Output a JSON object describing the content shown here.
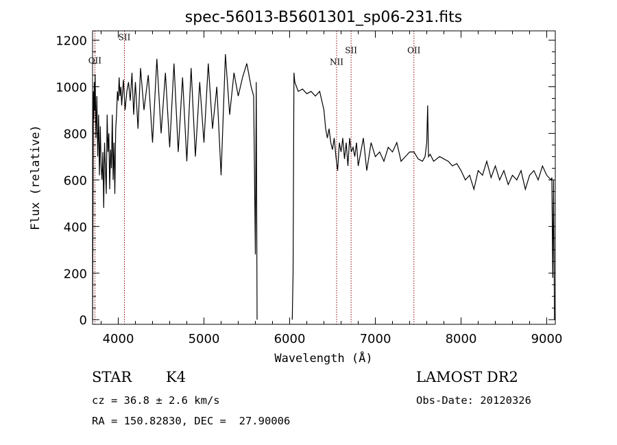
{
  "chart_data": {
    "type": "line",
    "title": "spec-56013-B5601301_sp06-231.fits",
    "xlabel": "Wavelength (Å)",
    "ylabel": "Flux (relative)",
    "xlim": [
      3700,
      9100
    ],
    "ylim": [
      -20,
      1240
    ],
    "x_ticks": [
      4000,
      5000,
      6000,
      7000,
      8000,
      9000
    ],
    "y_ticks": [
      0,
      200,
      400,
      600,
      800,
      1000,
      1200
    ],
    "grid": false,
    "legend": "none",
    "line_markers": [
      {
        "label": "OII",
        "x": 3727,
        "label_y": 1100
      },
      {
        "label": "SII",
        "x": 4072,
        "label_y": 1200
      },
      {
        "label": "NII",
        "x": 6548,
        "label_y": 1095
      },
      {
        "label": "SII",
        "x": 6717,
        "label_y": 1145
      },
      {
        "label": "OII",
        "x": 7450,
        "label_y": 1145
      }
    ],
    "series": [
      {
        "x": [
          3700,
          3705,
          3710,
          3715,
          3720,
          3725,
          3730,
          3740,
          3750,
          3760,
          3770,
          3780,
          3790,
          3800,
          3810,
          3820,
          3830,
          3840,
          3850,
          3860,
          3870,
          3880,
          3890,
          3900,
          3910,
          3920,
          3930,
          3940,
          3950,
          3960,
          3970,
          3980,
          3990,
          4000,
          4010,
          4020,
          4030,
          4040,
          4060,
          4080,
          4100,
          4120,
          4140,
          4160,
          4180,
          4200,
          4230,
          4260,
          4300,
          4350,
          4400,
          4450,
          4500,
          4550,
          4600,
          4650,
          4700,
          4750,
          4800,
          4850,
          4900,
          4950,
          5000,
          5050,
          5100,
          5150,
          5200,
          5250,
          5300,
          5350,
          5400,
          5450,
          5500,
          5550,
          5580,
          5600,
          5610,
          5620,
          null,
          6030,
          6040,
          6050,
          6060,
          6080,
          6100,
          6150,
          6200,
          6250,
          6300,
          6350,
          6400,
          6420,
          6440,
          6460,
          6480,
          6500,
          6520,
          6540,
          6560,
          6580,
          6600,
          6620,
          6640,
          6660,
          6680,
          6700,
          6720,
          6740,
          6760,
          6780,
          6800,
          6830,
          6860,
          6900,
          6950,
          7000,
          7050,
          7100,
          7150,
          7200,
          7250,
          7300,
          7350,
          7400,
          7450,
          7500,
          7550,
          7580,
          7600,
          7610,
          7620,
          7640,
          7680,
          7750,
          7800,
          7850,
          7900,
          7950,
          8000,
          8050,
          8100,
          8150,
          8200,
          8250,
          8300,
          8350,
          8400,
          8450,
          8500,
          8550,
          8600,
          8650,
          8700,
          8750,
          8800,
          8850,
          8900,
          8950,
          9000,
          9050,
          9060,
          9070,
          9080,
          9090
        ],
        "y": [
          0,
          420,
          980,
          860,
          1020,
          900,
          1050,
          780,
          960,
          700,
          880,
          620,
          830,
          660,
          600,
          720,
          480,
          760,
          650,
          540,
          880,
          720,
          800,
          560,
          730,
          650,
          880,
          600,
          760,
          540,
          820,
          880,
          980,
          940,
          1040,
          960,
          1000,
          920,
          1030,
          900,
          980,
          1020,
          940,
          1060,
          880,
          1020,
          820,
          1080,
          900,
          1050,
          760,
          1120,
          800,
          1060,
          740,
          1100,
          720,
          1040,
          680,
          1080,
          700,
          1020,
          760,
          1100,
          820,
          1000,
          620,
          1140,
          880,
          1060,
          960,
          1040,
          1100,
          1000,
          960,
          280,
          1020,
          0,
          null,
          0,
          200,
          1060,
          1020,
          1000,
          980,
          990,
          970,
          980,
          960,
          980,
          900,
          820,
          780,
          820,
          760,
          730,
          780,
          700,
          640,
          760,
          720,
          780,
          690,
          760,
          660,
          780,
          720,
          740,
          700,
          760,
          660,
          720,
          780,
          640,
          760,
          700,
          720,
          680,
          740,
          720,
          760,
          680,
          700,
          720,
          720,
          690,
          680,
          700,
          760,
          920,
          700,
          710,
          680,
          700,
          690,
          680,
          660,
          670,
          640,
          600,
          620,
          560,
          640,
          620,
          680,
          610,
          660,
          600,
          640,
          580,
          620,
          600,
          640,
          560,
          620,
          640,
          600,
          660,
          620,
          600,
          610,
          180,
          600,
          0
        ]
      }
    ],
    "colors": {
      "line": "#000000",
      "marker": "#8b0000",
      "axes": "#000000"
    }
  },
  "info": {
    "class_label": "STAR",
    "subclass": "K4",
    "survey": "LAMOST DR2",
    "redshift": "cz = 36.8 ± 2.6 km/s",
    "obs_date": "Obs-Date: 20120326",
    "coords": "RA = 150.82830, DEC =  27.90006"
  }
}
